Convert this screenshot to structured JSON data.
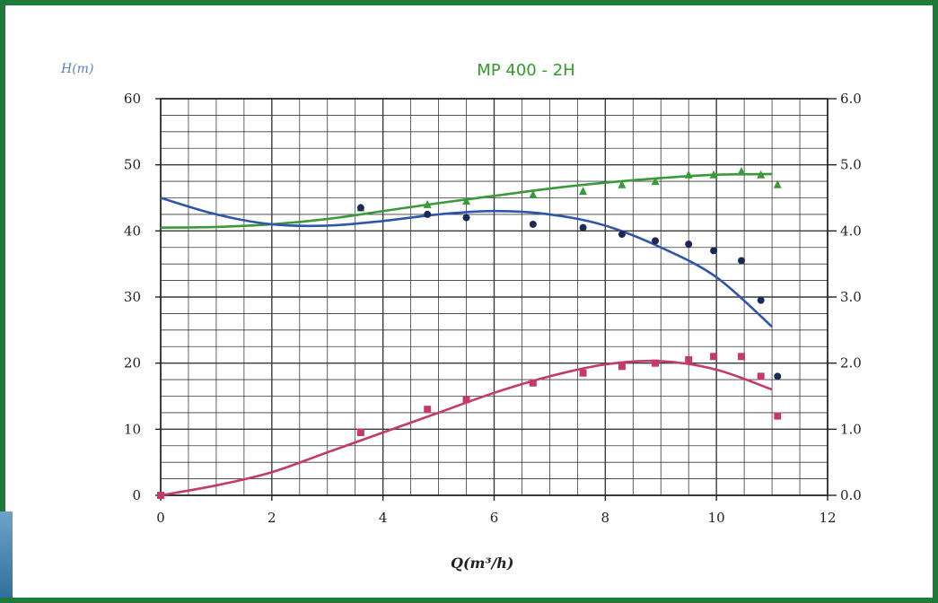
{
  "chart_data": {
    "type": "line",
    "title": "MP 400 - 2H",
    "ylabel": "H(m)",
    "xlabel": "Q(m³/h)",
    "xlim": [
      0,
      12
    ],
    "ylim": [
      0,
      60
    ],
    "y2lim": [
      0.0,
      6.0
    ],
    "grid": true,
    "x_ticks": [
      "0",
      "2",
      "4",
      "6",
      "8",
      "10",
      "12"
    ],
    "y_ticks": [
      "0",
      "10",
      "20",
      "30",
      "40",
      "50",
      "60"
    ],
    "y2_ticks": [
      "0.0",
      "1.0",
      "2.0",
      "3.0",
      "4.0",
      "5.0",
      "6.0"
    ],
    "series": [
      {
        "color": "#3a9a3a",
        "marker": "triangle",
        "curve": {
          "x": [
            0,
            1,
            2,
            3,
            4,
            5,
            6,
            7,
            8,
            9,
            10,
            11
          ],
          "y": [
            40.5,
            40.6,
            41.0,
            41.8,
            43.0,
            44.2,
            45.3,
            46.4,
            47.3,
            48.0,
            48.5,
            48.6
          ]
        },
        "points": {
          "x": [
            3.6,
            4.8,
            5.5,
            6.7,
            7.6,
            8.3,
            8.9,
            9.5,
            9.95,
            10.45,
            10.8,
            11.1
          ],
          "y": [
            43.5,
            44.0,
            44.5,
            45.5,
            46.0,
            47.0,
            47.5,
            48.5,
            48.5,
            49.0,
            48.5,
            47.0
          ]
        }
      },
      {
        "color": "#2f56a8",
        "marker": "circle",
        "curve": {
          "x": [
            0,
            1,
            2,
            3,
            4,
            5,
            6,
            7,
            8,
            9,
            10,
            11
          ],
          "y": [
            45.0,
            42.5,
            41.0,
            40.8,
            41.5,
            42.5,
            43.0,
            42.5,
            40.8,
            37.5,
            33.0,
            25.5
          ]
        },
        "points": {
          "x": [
            3.6,
            4.8,
            5.5,
            6.7,
            7.6,
            8.3,
            8.9,
            9.5,
            9.95,
            10.45,
            10.8,
            11.1
          ],
          "y": [
            43.5,
            42.5,
            42.0,
            41.0,
            40.5,
            39.5,
            38.5,
            38.0,
            37.0,
            35.5,
            29.5,
            18.0
          ]
        }
      },
      {
        "color": "#c43a6a",
        "marker": "square",
        "curve": {
          "x": [
            0,
            1,
            2,
            3,
            4,
            5,
            6,
            7,
            8,
            9,
            10,
            11
          ],
          "y": [
            0.0,
            1.5,
            3.5,
            6.5,
            9.5,
            12.5,
            15.5,
            18.0,
            19.8,
            20.3,
            19.0,
            16.0
          ]
        },
        "points": {
          "x": [
            0,
            3.6,
            4.8,
            5.5,
            6.7,
            7.6,
            8.3,
            8.9,
            9.5,
            9.95,
            10.45,
            10.8,
            11.1
          ],
          "y": [
            0.0,
            9.5,
            13.0,
            14.5,
            17.0,
            18.5,
            19.5,
            20.0,
            20.5,
            21.0,
            21.0,
            18.0,
            12.0
          ]
        }
      }
    ]
  }
}
